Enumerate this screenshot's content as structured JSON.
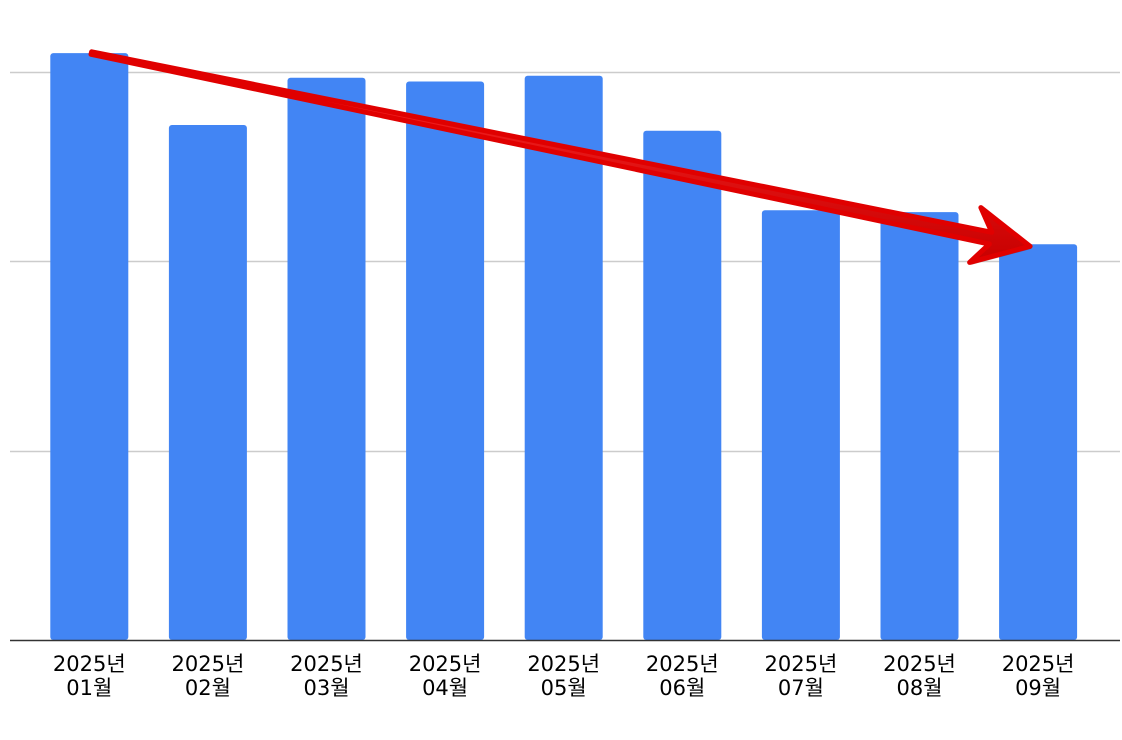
{
  "chart_data": {
    "type": "bar",
    "title": "",
    "xlabel": "",
    "ylabel": "",
    "categories": [
      [
        "2025년",
        "01월"
      ],
      [
        "2025년",
        "02월"
      ],
      [
        "2025년",
        "03월"
      ],
      [
        "2025년",
        "04월"
      ],
      [
        "2025년",
        "05월"
      ],
      [
        "2025년",
        "06월"
      ],
      [
        "2025년",
        "07월"
      ],
      [
        "2025년",
        "08월"
      ],
      [
        "2025년",
        "09월"
      ]
    ],
    "values": [
      3.1,
      2.72,
      2.97,
      2.95,
      2.98,
      2.69,
      2.27,
      2.26,
      2.09
    ],
    "ylim": [
      0,
      3
    ],
    "yticks": [
      0,
      1,
      2,
      3
    ],
    "y_tick_labels_visible": false,
    "grid": true,
    "legend": "none",
    "colors": {
      "bar": "#4285f4",
      "grid": "#cccccc",
      "axis": "#333333",
      "label": "#000000",
      "arrow": "#e00000"
    },
    "annotations": [
      {
        "type": "trend-arrow",
        "meaning": "downward trend",
        "from_category_index": 0,
        "to_category_index": 8,
        "color": "#e00000"
      }
    ]
  }
}
